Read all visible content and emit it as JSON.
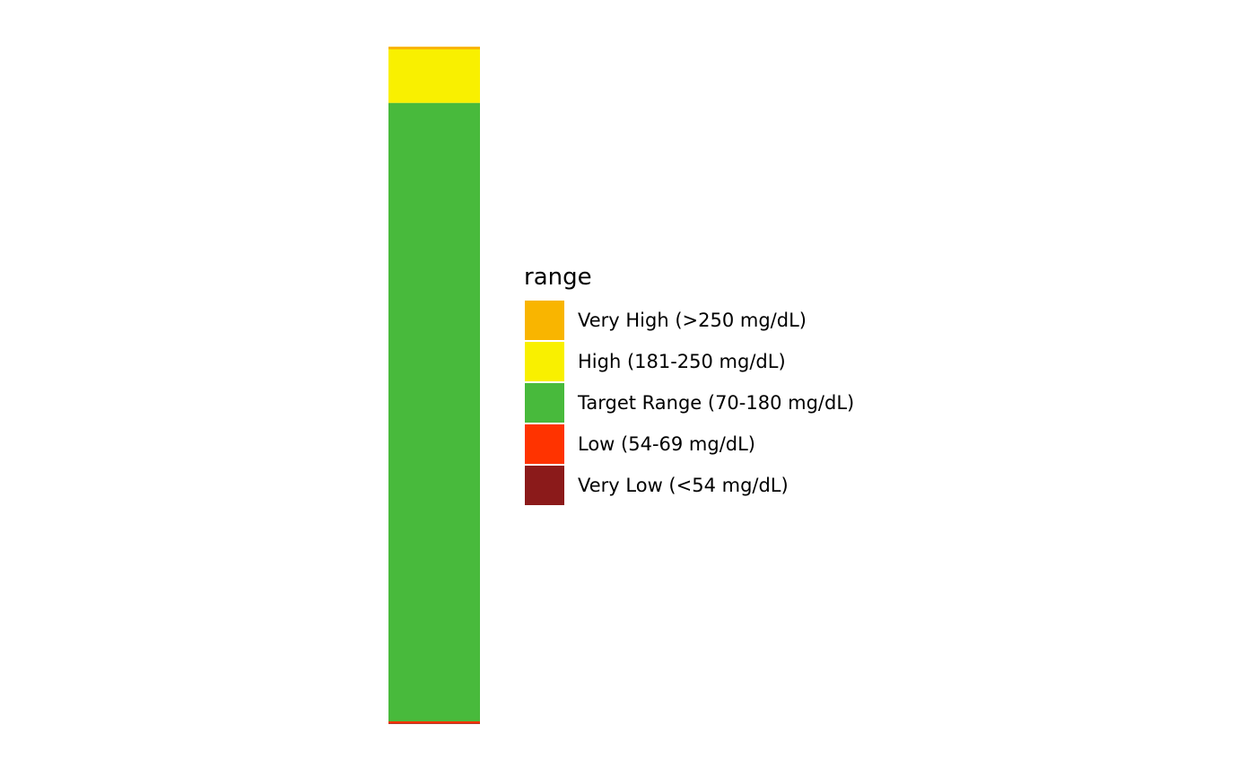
{
  "chart_data": {
    "type": "bar",
    "stacked": true,
    "orientation": "vertical",
    "categories": [
      ""
    ],
    "series": [
      {
        "name": "Very Low (<54 mg/dL)",
        "values": [
          0.1
        ],
        "color": "#8B1A1A"
      },
      {
        "name": "Low (54-69 mg/dL)",
        "values": [
          0.3
        ],
        "color": "#FF3300"
      },
      {
        "name": "Target Range (70-180 mg/dL)",
        "values": [
          91.3
        ],
        "color": "#48BA3C"
      },
      {
        "name": "High (181-250 mg/dL)",
        "values": [
          7.9
        ],
        "color": "#F9F000"
      },
      {
        "name": "Very High (>250 mg/dL)",
        "values": [
          0.4
        ],
        "color": "#F9B500"
      }
    ],
    "ylim": [
      0,
      100
    ],
    "grid": false,
    "axes_visible": false,
    "legend": {
      "title": "range",
      "placement": "right",
      "order": [
        "Very High (>250 mg/dL)",
        "High (181-250 mg/dL)",
        "Target Range (70-180 mg/dL)",
        "Low (54-69 mg/dL)",
        "Very Low (<54 mg/dL)"
      ]
    }
  }
}
